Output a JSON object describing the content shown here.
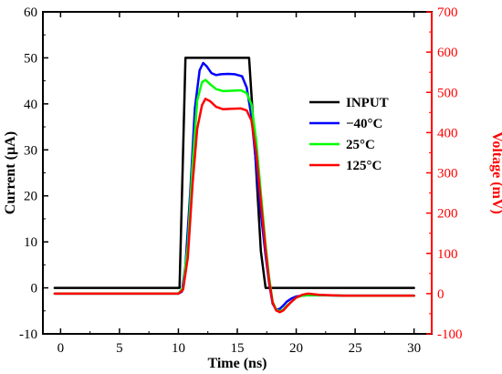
{
  "chart_data": {
    "type": "line",
    "xlabel": "Time (ns)",
    "ylabel": "Current (µA)",
    "y2label": "Voltage (mV)",
    "xlim": [
      -1.5,
      31.5
    ],
    "ylim": [
      -10,
      60
    ],
    "y2lim": [
      -100,
      700
    ],
    "xticks": [
      0,
      5,
      10,
      15,
      20,
      25,
      30
    ],
    "yticks": [
      -10,
      0,
      10,
      20,
      30,
      40,
      50,
      60
    ],
    "y2ticks": [
      -100,
      0,
      100,
      200,
      300,
      400,
      500,
      600,
      700
    ],
    "grid": false,
    "legend_position": "right",
    "colors": {
      "axis": "#000000",
      "right_axis": "#ff0000"
    },
    "series": [
      {
        "name": "INPUT",
        "axis": "left",
        "color": "#000000",
        "x": [
          -0.5,
          10.1,
          10.35,
          10.6,
          15.6,
          16.0,
          16.5,
          17.0,
          17.4,
          30
        ],
        "y": [
          0,
          0,
          25,
          50,
          50,
          50,
          30,
          8,
          0,
          0
        ]
      },
      {
        "name": "−40°C",
        "axis": "right",
        "color": "#0000ff",
        "x": [
          -0.5,
          10.0,
          10.3,
          10.6,
          11.0,
          11.4,
          11.8,
          12.1,
          12.4,
          12.8,
          13.2,
          13.6,
          14.2,
          14.8,
          15.4,
          15.8,
          16.2,
          16.6,
          17.0,
          17.4,
          17.7,
          18.0,
          18.3,
          18.6,
          18.9,
          19.2,
          19.6,
          20.0,
          20.5,
          21.0,
          22.0,
          24.0,
          30.0
        ],
        "y": [
          0,
          0,
          5,
          70,
          250,
          460,
          555,
          573,
          565,
          548,
          543,
          545,
          546,
          545,
          540,
          512,
          440,
          320,
          200,
          95,
          25,
          -25,
          -40,
          -38,
          -30,
          -20,
          -12,
          -7,
          -5,
          -4,
          -4,
          -5,
          -5
        ]
      },
      {
        "name": "25°C",
        "axis": "right",
        "color": "#00ff00",
        "x": [
          -0.5,
          10.0,
          10.4,
          10.8,
          11.2,
          11.6,
          12.0,
          12.3,
          12.7,
          13.2,
          13.8,
          14.5,
          15.3,
          15.8,
          16.2,
          16.6,
          17.0,
          17.4,
          17.7,
          18.0,
          18.3,
          18.6,
          18.9,
          19.2,
          19.6,
          20.0,
          20.5,
          21.0,
          22.0,
          24.0,
          30.0
        ],
        "y": [
          0,
          0,
          15,
          120,
          320,
          480,
          525,
          531,
          520,
          508,
          503,
          504,
          505,
          498,
          470,
          380,
          250,
          120,
          40,
          -20,
          -40,
          -44,
          -40,
          -30,
          -20,
          -10,
          -5,
          -4,
          -4,
          -5,
          -5
        ]
      },
      {
        "name": "125°C",
        "axis": "right",
        "color": "#ff0000",
        "x": [
          -0.5,
          10.0,
          10.4,
          10.8,
          11.2,
          11.6,
          12.0,
          12.3,
          12.7,
          13.2,
          13.8,
          14.5,
          15.3,
          15.8,
          16.2,
          16.6,
          17.0,
          17.4,
          17.7,
          18.0,
          18.3,
          18.6,
          18.9,
          19.2,
          19.6,
          20.0,
          20.5,
          21.0,
          22.0,
          24.0,
          30.0
        ],
        "y": [
          0,
          0,
          10,
          90,
          270,
          410,
          468,
          484,
          478,
          464,
          458,
          459,
          460,
          455,
          430,
          350,
          230,
          110,
          30,
          -22,
          -42,
          -46,
          -42,
          -32,
          -20,
          -10,
          -3,
          0,
          -3,
          -5,
          -5
        ]
      }
    ]
  }
}
